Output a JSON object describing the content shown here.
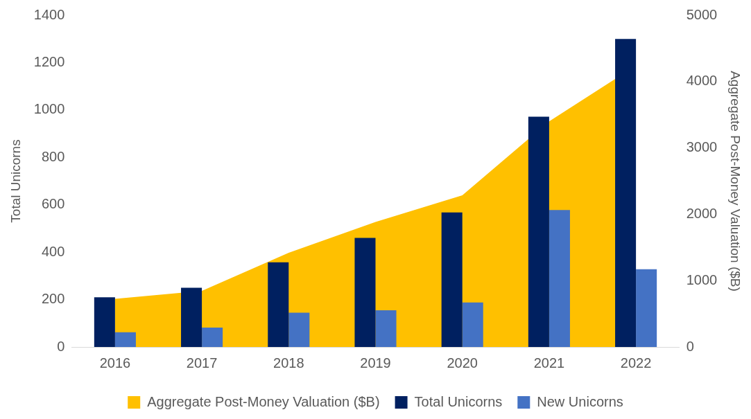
{
  "chart_data": {
    "type": "bar",
    "categories": [
      "2016",
      "2017",
      "2018",
      "2019",
      "2020",
      "2021",
      "2022"
    ],
    "y_label": "Total Unicorns",
    "y2_label": "Aggregate Post-Money Valuation ($B)",
    "series": [
      {
        "name": "Aggregate Post-Money Valuation ($B)",
        "type": "area",
        "axis": "y2",
        "color": "#ffc000",
        "values": [
          725,
          845,
          1420,
          1885,
          2285,
          3400,
          4240
        ]
      },
      {
        "name": "Total Unicorns",
        "type": "bar",
        "color": "#002060",
        "values": [
          210,
          250,
          357,
          460,
          568,
          972,
          1300
        ]
      },
      {
        "name": "New Unicorns",
        "type": "bar",
        "color": "#4472c4",
        "values": [
          62,
          82,
          145,
          155,
          188,
          578,
          328
        ]
      }
    ],
    "ylim": [
      0,
      1400
    ],
    "yticks": [
      0,
      200,
      400,
      600,
      800,
      1000,
      1200,
      1400
    ],
    "y2lim": [
      0,
      5000
    ],
    "y2ticks": [
      0,
      1000,
      2000,
      3000,
      4000,
      5000
    ],
    "grid": false,
    "legend": "bottom"
  }
}
